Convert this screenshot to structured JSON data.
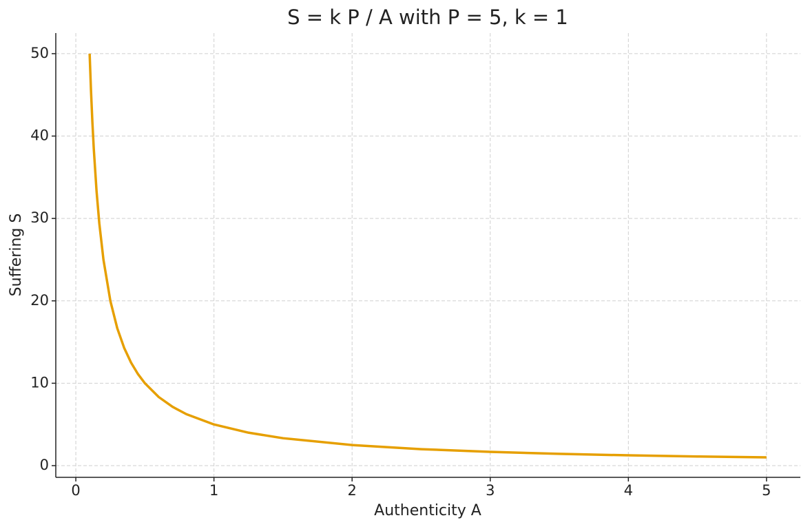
{
  "chart_data": {
    "type": "line",
    "title": "S = k P / A  with  P = 5,  k = 1",
    "xlabel": "Authenticity A",
    "ylabel": "Suffering S",
    "x": [
      0.1,
      0.11,
      0.12,
      0.13,
      0.15,
      0.17,
      0.2,
      0.25,
      0.3,
      0.35,
      0.4,
      0.45,
      0.5,
      0.6,
      0.7,
      0.8,
      1,
      1.25,
      1.5,
      2,
      2.5,
      3,
      3.5,
      4,
      4.5,
      5
    ],
    "series": [
      {
        "name": "S",
        "color": "#E69F00",
        "values": [
          50,
          45.45,
          41.67,
          38.46,
          33.33,
          29.41,
          25,
          20,
          16.67,
          14.29,
          12.5,
          11.11,
          10,
          8.33,
          7.14,
          6.25,
          5,
          4,
          3.33,
          2.5,
          2,
          1.67,
          1.43,
          1.25,
          1.11,
          1
        ]
      }
    ],
    "xlim": [
      -0.145,
      5.245
    ],
    "ylim": [
      -1.42,
      52.5
    ],
    "xticks": [
      0,
      1,
      2,
      3,
      4,
      5
    ],
    "yticks": [
      0,
      10,
      20,
      30,
      40,
      50
    ],
    "grid": true
  }
}
